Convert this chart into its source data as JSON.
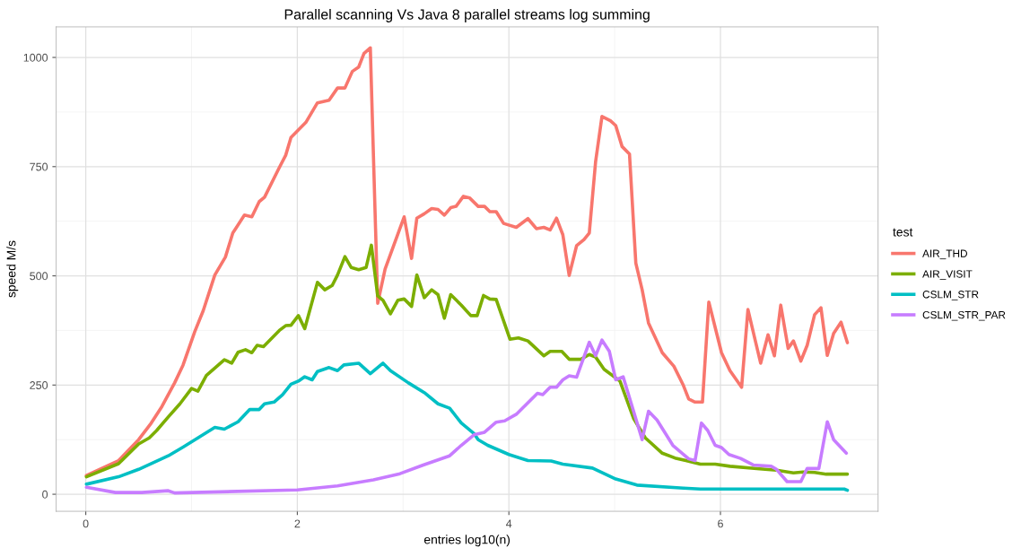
{
  "chart_data": {
    "type": "line",
    "title": "Parallel scanning Vs Java 8 parallel streams log summing",
    "xlabel": "entries log10(n)",
    "ylabel": "speed M/s",
    "legend_title": "test",
    "legend": "right",
    "grid": true,
    "xlim": [
      -0.28,
      7.49
    ],
    "ylim": [
      -39,
      1070
    ],
    "xticks": [
      0,
      2,
      4,
      6
    ],
    "yticks": [
      0,
      250,
      500,
      750,
      1000
    ],
    "series": [
      {
        "name": "AIR_THD",
        "color": "#f8766d",
        "x": [
          0.006,
          0.31,
          0.5,
          0.61,
          0.72,
          0.84,
          0.92,
          1.03,
          1.11,
          1.22,
          1.32,
          1.39,
          1.5,
          1.57,
          1.64,
          1.69,
          1.83,
          1.89,
          1.94,
          2.08,
          2.19,
          2.3,
          2.38,
          2.45,
          2.52,
          2.58,
          2.63,
          2.69,
          2.76,
          2.83,
          3.01,
          3.08,
          3.13,
          3.2,
          3.27,
          3.33,
          3.39,
          3.45,
          3.5,
          3.57,
          3.63,
          3.71,
          3.77,
          3.82,
          3.88,
          3.95,
          4.07,
          4.18,
          4.26,
          4.33,
          4.39,
          4.45,
          4.51,
          4.57,
          4.64,
          4.71,
          4.76,
          4.82,
          4.88,
          4.96,
          5.01,
          5.07,
          5.14,
          5.2,
          5.26,
          5.32,
          5.45,
          5.56,
          5.65,
          5.7,
          5.76,
          5.83,
          5.89,
          6.01,
          6.09,
          6.2,
          6.26,
          6.33,
          6.38,
          6.45,
          6.51,
          6.57,
          6.64,
          6.69,
          6.76,
          6.82,
          6.89,
          6.95,
          7.01,
          7.07,
          7.14,
          7.2
        ],
        "values": [
          43,
          77,
          125,
          160,
          201,
          255,
          296,
          372,
          420,
          502,
          543,
          598,
          639,
          635,
          670,
          680,
          748,
          776,
          817,
          851,
          896,
          902,
          930,
          930,
          968,
          978,
          1009,
          1022,
          437,
          516,
          635,
          540,
          632,
          642,
          654,
          652,
          639,
          656,
          659,
          682,
          678,
          659,
          659,
          647,
          647,
          620,
          611,
          631,
          608,
          611,
          605,
          632,
          594,
          501,
          569,
          583,
          598,
          762,
          865,
          855,
          844,
          796,
          779,
          529,
          468,
          392,
          324,
          293,
          249,
          218,
          211,
          211,
          440,
          324,
          283,
          245,
          423,
          351,
          300,
          365,
          317,
          433,
          334,
          351,
          305,
          341,
          411,
          427,
          318,
          368,
          394,
          347
        ]
      },
      {
        "name": "AIR_VISIT",
        "color": "#7cae00",
        "x": [
          0.006,
          0.31,
          0.5,
          0.6,
          0.67,
          0.78,
          0.89,
          1.0,
          1.06,
          1.14,
          1.31,
          1.38,
          1.44,
          1.51,
          1.57,
          1.62,
          1.68,
          1.83,
          1.89,
          1.94,
          2.01,
          2.07,
          2.19,
          2.26,
          2.33,
          2.38,
          2.45,
          2.51,
          2.58,
          2.65,
          2.7,
          2.76,
          2.81,
          2.88,
          2.95,
          3.01,
          3.08,
          3.13,
          3.2,
          3.27,
          3.33,
          3.39,
          3.45,
          3.55,
          3.64,
          3.7,
          3.76,
          3.82,
          3.88,
          4.01,
          4.09,
          4.18,
          4.33,
          4.39,
          4.5,
          4.57,
          4.68,
          4.76,
          4.82,
          4.9,
          5.05,
          5.18,
          5.29,
          5.45,
          5.57,
          5.81,
          5.95,
          6.09,
          6.37,
          6.53,
          6.69,
          6.78,
          6.89,
          7.0,
          7.2
        ],
        "values": [
          40,
          70,
          115,
          129,
          146,
          177,
          207,
          242,
          236,
          272,
          308,
          300,
          325,
          331,
          324,
          341,
          338,
          375,
          386,
          387,
          409,
          379,
          485,
          468,
          478,
          502,
          544,
          519,
          514,
          519,
          570,
          454,
          444,
          413,
          444,
          447,
          430,
          502,
          450,
          468,
          457,
          403,
          457,
          433,
          409,
          409,
          455,
          447,
          446,
          355,
          358,
          351,
          317,
          327,
          327,
          309,
          309,
          320,
          314,
          286,
          259,
          173,
          129,
          94,
          83,
          69,
          69,
          64,
          58,
          55,
          49,
          51,
          50,
          46,
          46
        ]
      },
      {
        "name": "CSLM_STR",
        "color": "#00bfc4",
        "x": [
          0.006,
          0.31,
          0.5,
          0.78,
          0.92,
          1.06,
          1.22,
          1.31,
          1.44,
          1.55,
          1.64,
          1.69,
          1.78,
          1.86,
          1.94,
          2.01,
          2.07,
          2.14,
          2.19,
          2.3,
          2.38,
          2.44,
          2.58,
          2.69,
          2.81,
          2.88,
          3.05,
          3.21,
          3.33,
          3.44,
          3.55,
          3.67,
          3.71,
          3.8,
          4.0,
          4.18,
          4.4,
          4.51,
          4.79,
          5.01,
          5.21,
          5.65,
          5.81,
          7.17,
          7.2
        ],
        "values": [
          23,
          40,
          57,
          88,
          108,
          129,
          153,
          149,
          166,
          194,
          194,
          207,
          211,
          228,
          252,
          259,
          269,
          262,
          281,
          290,
          283,
          296,
          300,
          276,
          300,
          283,
          255,
          231,
          207,
          197,
          163,
          139,
          125,
          112,
          91,
          77,
          76,
          69,
          60,
          35,
          21,
          14,
          12,
          12,
          9
        ]
      },
      {
        "name": "CSLM_STR_PAR",
        "color": "#c77cff",
        "x": [
          0.006,
          0.28,
          0.53,
          0.78,
          0.84,
          2.0,
          2.38,
          2.72,
          2.97,
          3.19,
          3.44,
          3.55,
          3.67,
          3.77,
          3.88,
          3.96,
          4.07,
          4.27,
          4.32,
          4.39,
          4.45,
          4.51,
          4.57,
          4.64,
          4.76,
          4.82,
          4.88,
          4.95,
          5.01,
          5.08,
          5.26,
          5.32,
          5.4,
          5.55,
          5.7,
          5.76,
          5.82,
          5.88,
          5.95,
          6.01,
          6.08,
          6.19,
          6.31,
          6.48,
          6.53,
          6.63,
          6.76,
          6.82,
          6.93,
          7.01,
          7.07,
          7.19
        ],
        "values": [
          16,
          4,
          4,
          8,
          3,
          10,
          19,
          33,
          47,
          67,
          88,
          112,
          136,
          142,
          165,
          168,
          183,
          231,
          228,
          245,
          245,
          262,
          271,
          268,
          348,
          317,
          353,
          327,
          262,
          269,
          125,
          190,
          170,
          112,
          81,
          77,
          163,
          146,
          112,
          107,
          91,
          82,
          67,
          64,
          57,
          29,
          29,
          59,
          59,
          166,
          125,
          94
        ]
      }
    ]
  }
}
